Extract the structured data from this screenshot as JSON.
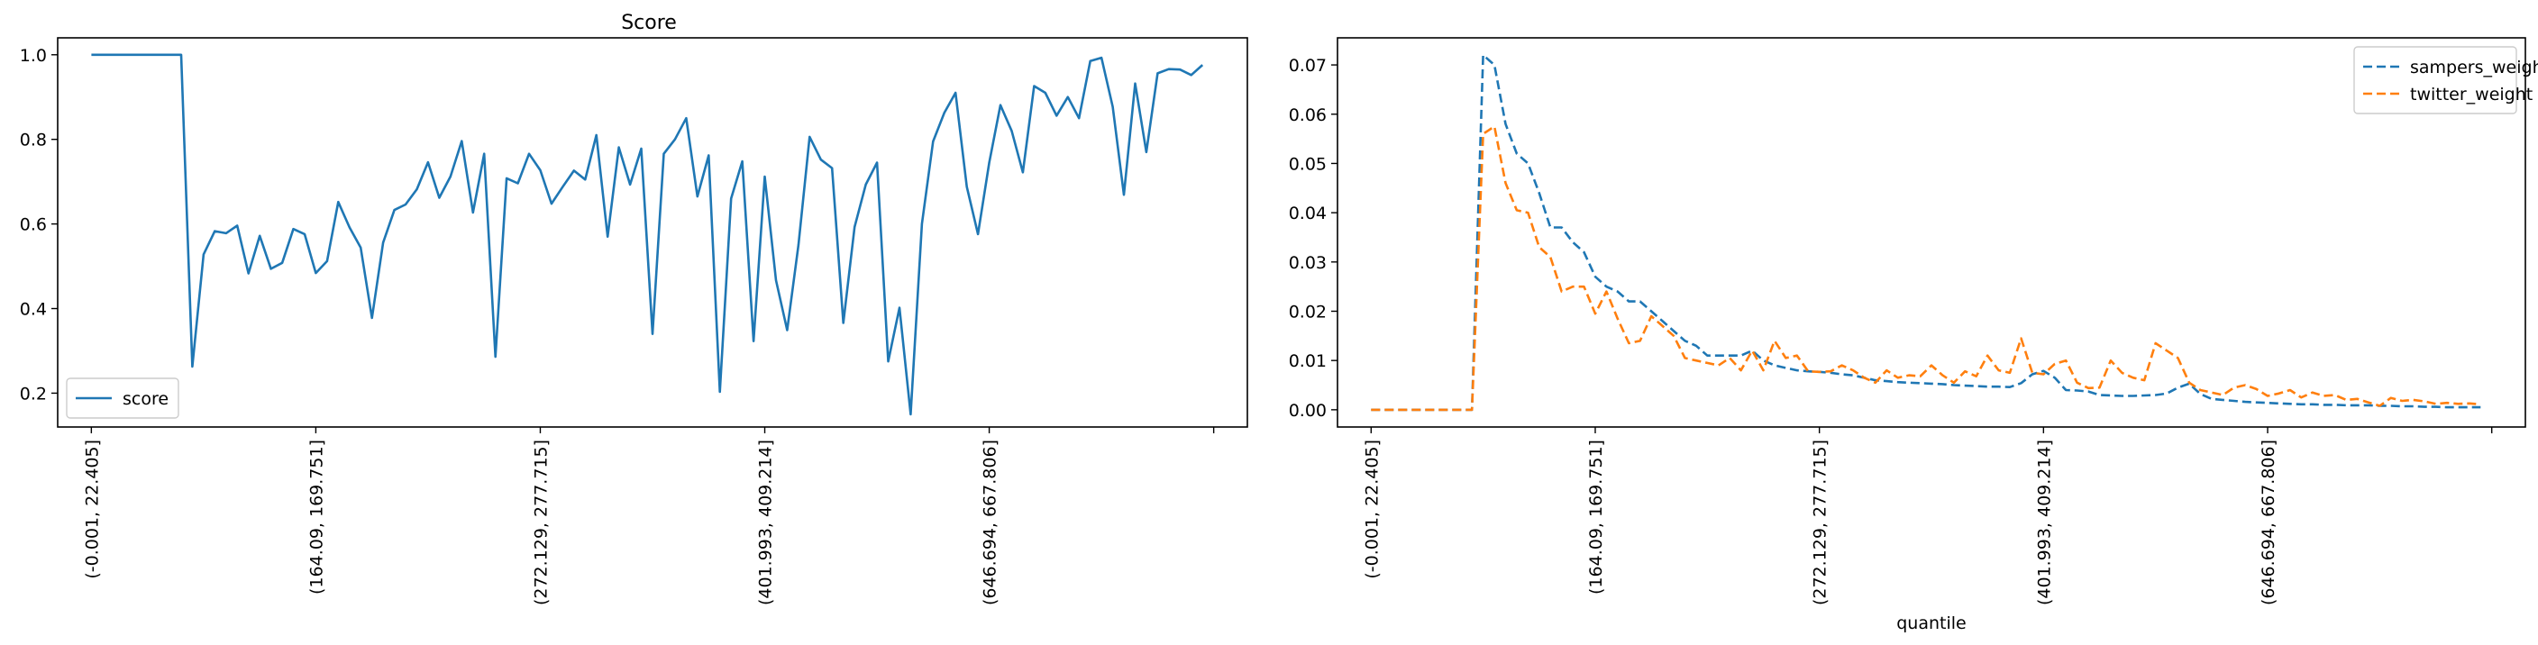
{
  "chart_data": [
    {
      "type": "line",
      "title": "Score",
      "xlabel": "",
      "ylabel": "",
      "ylim": [
        0.12,
        1.04
      ],
      "yticks": [
        0.2,
        0.4,
        0.6,
        0.8,
        1.0
      ],
      "ytick_labels": [
        "0.2",
        "0.4",
        "0.6",
        "0.8",
        "1.0"
      ],
      "xlim": [
        -3,
        103
      ],
      "xticks": [
        0,
        20,
        40,
        60,
        80,
        100
      ],
      "xtick_labels": [
        "(-0.001, 22.405]",
        "(164.09, 169.751]",
        "(272.129, 277.715]",
        "(401.993, 409.214]",
        "(646.694, 667.806]",
        ""
      ],
      "grid": false,
      "legend_position": "lower-left",
      "series": [
        {
          "name": "score",
          "color": "#1f77b4",
          "style": "solid",
          "values": [
            1.0,
            1.0,
            1.0,
            1.0,
            1.0,
            1.0,
            1.0,
            1.0,
            1.0,
            0.263,
            0.528,
            0.583,
            0.578,
            0.596,
            0.483,
            0.572,
            0.494,
            0.508,
            0.588,
            0.576,
            0.484,
            0.512,
            0.652,
            0.592,
            0.544,
            0.378,
            0.556,
            0.633,
            0.646,
            0.682,
            0.746,
            0.662,
            0.712,
            0.796,
            0.627,
            0.766,
            0.286,
            0.708,
            0.696,
            0.766,
            0.727,
            0.648,
            0.688,
            0.726,
            0.705,
            0.81,
            0.57,
            0.781,
            0.693,
            0.778,
            0.34,
            0.766,
            0.8,
            0.85,
            0.665,
            0.762,
            0.203,
            0.66,
            0.748,
            0.323,
            0.712,
            0.467,
            0.349,
            0.55,
            0.806,
            0.752,
            0.732,
            0.366,
            0.593,
            0.693,
            0.745,
            0.275,
            0.402,
            0.15,
            0.6,
            0.795,
            0.863,
            0.91,
            0.688,
            0.576,
            0.745,
            0.881,
            0.82,
            0.722,
            0.926,
            0.91,
            0.856,
            0.9,
            0.85,
            0.985,
            0.993,
            0.877,
            0.669,
            0.932,
            0.77,
            0.956,
            0.966,
            0.965,
            0.952,
            0.976
          ]
        }
      ]
    },
    {
      "type": "line",
      "title": "",
      "xlabel": "quantile",
      "ylabel": "",
      "ylim": [
        -0.0035,
        0.0755
      ],
      "yticks": [
        0.0,
        0.01,
        0.02,
        0.03,
        0.04,
        0.05,
        0.06,
        0.07
      ],
      "ytick_labels": [
        "0.00",
        "0.01",
        "0.02",
        "0.03",
        "0.04",
        "0.05",
        "0.06",
        "0.07"
      ],
      "xlim": [
        -3,
        103
      ],
      "xticks": [
        0,
        20,
        40,
        60,
        80,
        100
      ],
      "xtick_labels": [
        "(-0.001, 22.405]",
        "(164.09, 169.751]",
        "(272.129, 277.715]",
        "(401.993, 409.214]",
        "(646.694, 667.806]",
        ""
      ],
      "grid": false,
      "legend_position": "upper-right",
      "series": [
        {
          "name": "sampers_weight",
          "color": "#1f77b4",
          "style": "dashed",
          "values": [
            0.0,
            0.0,
            0.0,
            0.0,
            0.0,
            0.0,
            0.0,
            0.0,
            0.0,
            0.0,
            0.072,
            0.07,
            0.058,
            0.052,
            0.05,
            0.044,
            0.037,
            0.037,
            0.034,
            0.032,
            0.027,
            0.025,
            0.024,
            0.022,
            0.022,
            0.02,
            0.018,
            0.016,
            0.014,
            0.013,
            0.011,
            0.011,
            0.011,
            0.011,
            0.012,
            0.01,
            0.009,
            0.0085,
            0.008,
            0.0078,
            0.0077,
            0.0075,
            0.0072,
            0.007,
            0.0065,
            0.006,
            0.0058,
            0.0056,
            0.0055,
            0.0054,
            0.0053,
            0.0052,
            0.005,
            0.0049,
            0.0048,
            0.0047,
            0.0047,
            0.0046,
            0.0054,
            0.0072,
            0.0079,
            0.0065,
            0.004,
            0.0039,
            0.0037,
            0.003,
            0.0029,
            0.0028,
            0.0028,
            0.0029,
            0.003,
            0.0033,
            0.0045,
            0.0053,
            0.0032,
            0.0022,
            0.002,
            0.0018,
            0.0016,
            0.0015,
            0.0014,
            0.0013,
            0.0012,
            0.0011,
            0.0011,
            0.001,
            0.001,
            0.0009,
            0.0009,
            0.0009,
            0.0008,
            0.0008,
            0.0007,
            0.0007,
            0.0006,
            0.0006,
            0.0005,
            0.0005,
            0.0005,
            0.0005
          ]
        },
        {
          "name": "twitter_weight",
          "color": "#ff7f0e",
          "style": "dashed",
          "values": [
            0.0,
            0.0,
            0.0,
            0.0,
            0.0,
            0.0,
            0.0,
            0.0,
            0.0,
            0.0,
            0.056,
            0.0575,
            0.046,
            0.0405,
            0.04,
            0.033,
            0.031,
            0.024,
            0.025,
            0.025,
            0.0195,
            0.024,
            0.0185,
            0.0135,
            0.014,
            0.019,
            0.017,
            0.015,
            0.0105,
            0.01,
            0.0095,
            0.009,
            0.0105,
            0.008,
            0.012,
            0.008,
            0.014,
            0.0105,
            0.011,
            0.0078,
            0.0077,
            0.0078,
            0.009,
            0.008,
            0.0065,
            0.0055,
            0.008,
            0.0065,
            0.007,
            0.0068,
            0.009,
            0.007,
            0.0055,
            0.0078,
            0.0068,
            0.011,
            0.008,
            0.0075,
            0.0145,
            0.0075,
            0.0072,
            0.0093,
            0.01,
            0.0055,
            0.0044,
            0.0045,
            0.01,
            0.0075,
            0.0065,
            0.006,
            0.0135,
            0.012,
            0.0105,
            0.0055,
            0.004,
            0.0035,
            0.003,
            0.0045,
            0.005,
            0.0042,
            0.0028,
            0.0033,
            0.004,
            0.0025,
            0.0035,
            0.0028,
            0.003,
            0.002,
            0.0022,
            0.0015,
            0.0008,
            0.0024,
            0.0018,
            0.002,
            0.0017,
            0.0012,
            0.0014,
            0.0012,
            0.0013,
            0.0011
          ]
        }
      ]
    }
  ]
}
